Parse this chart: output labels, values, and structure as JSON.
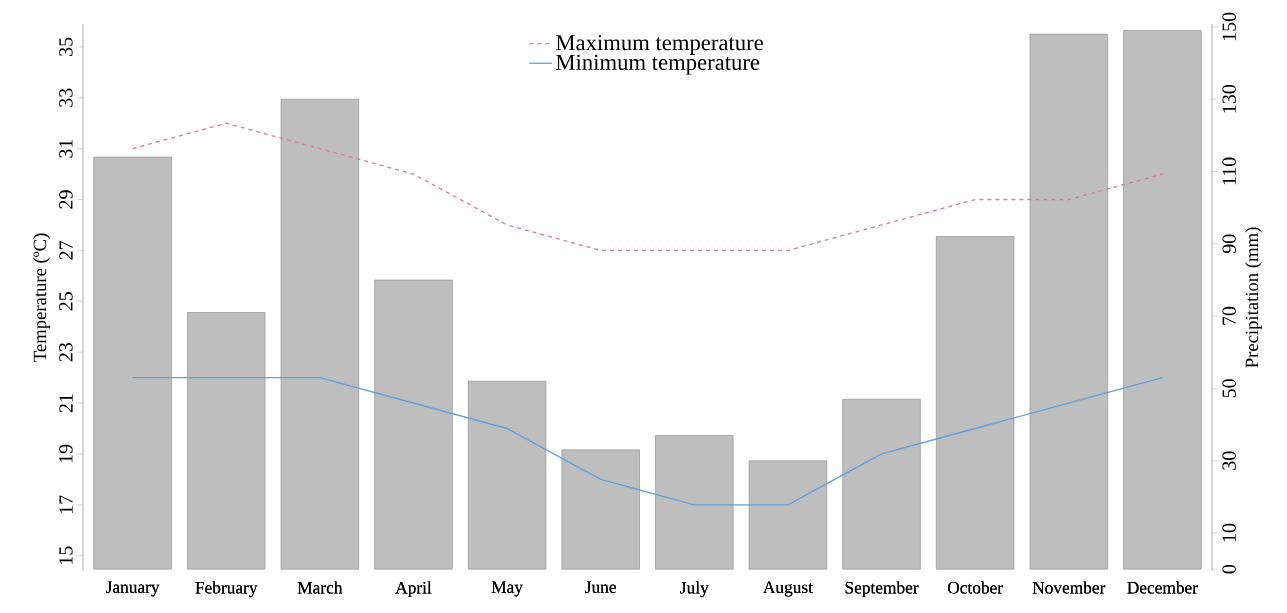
{
  "chart_data": {
    "type": "bar",
    "categories": [
      "January",
      "February",
      "March",
      "April",
      "May",
      "June",
      "July",
      "August",
      "September",
      "October",
      "November",
      "December"
    ],
    "series": [
      {
        "axis": "y2",
        "color": "#bebebe",
        "values": [
          114,
          71,
          130,
          80,
          52,
          33,
          37,
          30,
          47,
          92,
          148,
          149
        ]
      },
      {
        "type": "line",
        "name": "Maximum temperature",
        "color": "#dc7c8e",
        "line_style": "dashed",
        "values": [
          31,
          32,
          31,
          30,
          28,
          27,
          27,
          27,
          28,
          29,
          29,
          30
        ]
      },
      {
        "type": "line",
        "name": "Minimum temperature",
        "color": "#61a0dc",
        "line_style": "solid",
        "values": [
          22,
          22,
          22,
          21,
          20,
          18,
          17,
          17,
          19,
          20,
          21,
          22
        ]
      }
    ],
    "ylabel": "Temperature (ºC)",
    "y2label": "Precipitation (mm)",
    "ylim": [
      14.4,
      35.9
    ],
    "yticks": [
      15,
      17,
      19,
      21,
      23,
      25,
      27,
      29,
      31,
      33,
      35
    ],
    "y2lim": [
      -0.5,
      150.8
    ],
    "y2ticks": [
      0,
      10,
      30,
      50,
      70,
      90,
      110,
      130,
      150
    ],
    "legend": "top"
  }
}
